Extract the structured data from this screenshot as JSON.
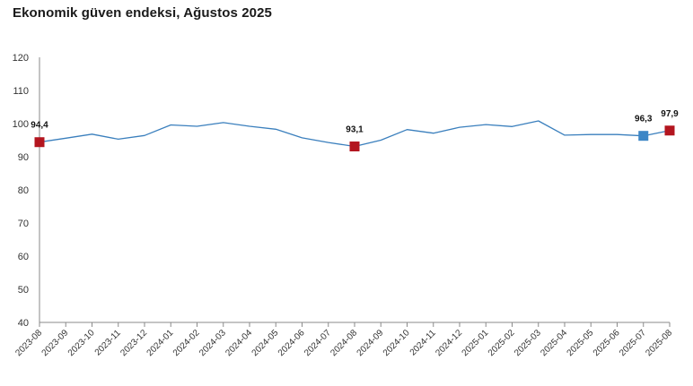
{
  "title": "Ekonomik güven endeksi, Ağustos 2025",
  "colors": {
    "line": "#3a7fbd",
    "highlight_red": "#b3151f",
    "highlight_blue": "#3d86c6",
    "axis": "#8a8a8a",
    "grid": "#ffffff"
  },
  "chart_data": {
    "type": "line",
    "title": "Ekonomik güven endeksi, Ağustos 2025",
    "xlabel": "",
    "ylabel": "",
    "ylim": [
      40,
      120
    ],
    "yticks": [
      40,
      50,
      60,
      70,
      80,
      90,
      100,
      110,
      120
    ],
    "grid": false,
    "categories": [
      "2023-08",
      "2023-09",
      "2023-10",
      "2023-11",
      "2023-12",
      "2024-01",
      "2024-02",
      "2024-03",
      "2024-04",
      "2024-05",
      "2024-06",
      "2024-07",
      "2024-08",
      "2024-09",
      "2024-10",
      "2024-11",
      "2024-12",
      "2025-01",
      "2025-02",
      "2025-03",
      "2025-04",
      "2025-05",
      "2025-06",
      "2025-07",
      "2025-08"
    ],
    "series": [
      {
        "values": [
          94.4,
          95.6,
          96.8,
          95.3,
          96.4,
          99.6,
          99.2,
          100.3,
          99.2,
          98.3,
          95.7,
          94.3,
          93.1,
          95.0,
          98.2,
          97.1,
          98.9,
          99.7,
          99.1,
          100.8,
          96.5,
          96.7,
          96.7,
          96.3,
          97.9
        ]
      }
    ],
    "highlights": [
      {
        "index": 0,
        "label": "94,4",
        "color": "highlight_red"
      },
      {
        "index": 12,
        "label": "93,1",
        "color": "highlight_red"
      },
      {
        "index": 23,
        "label": "96,3",
        "color": "highlight_blue"
      },
      {
        "index": 24,
        "label": "97,9",
        "color": "highlight_red"
      }
    ]
  }
}
